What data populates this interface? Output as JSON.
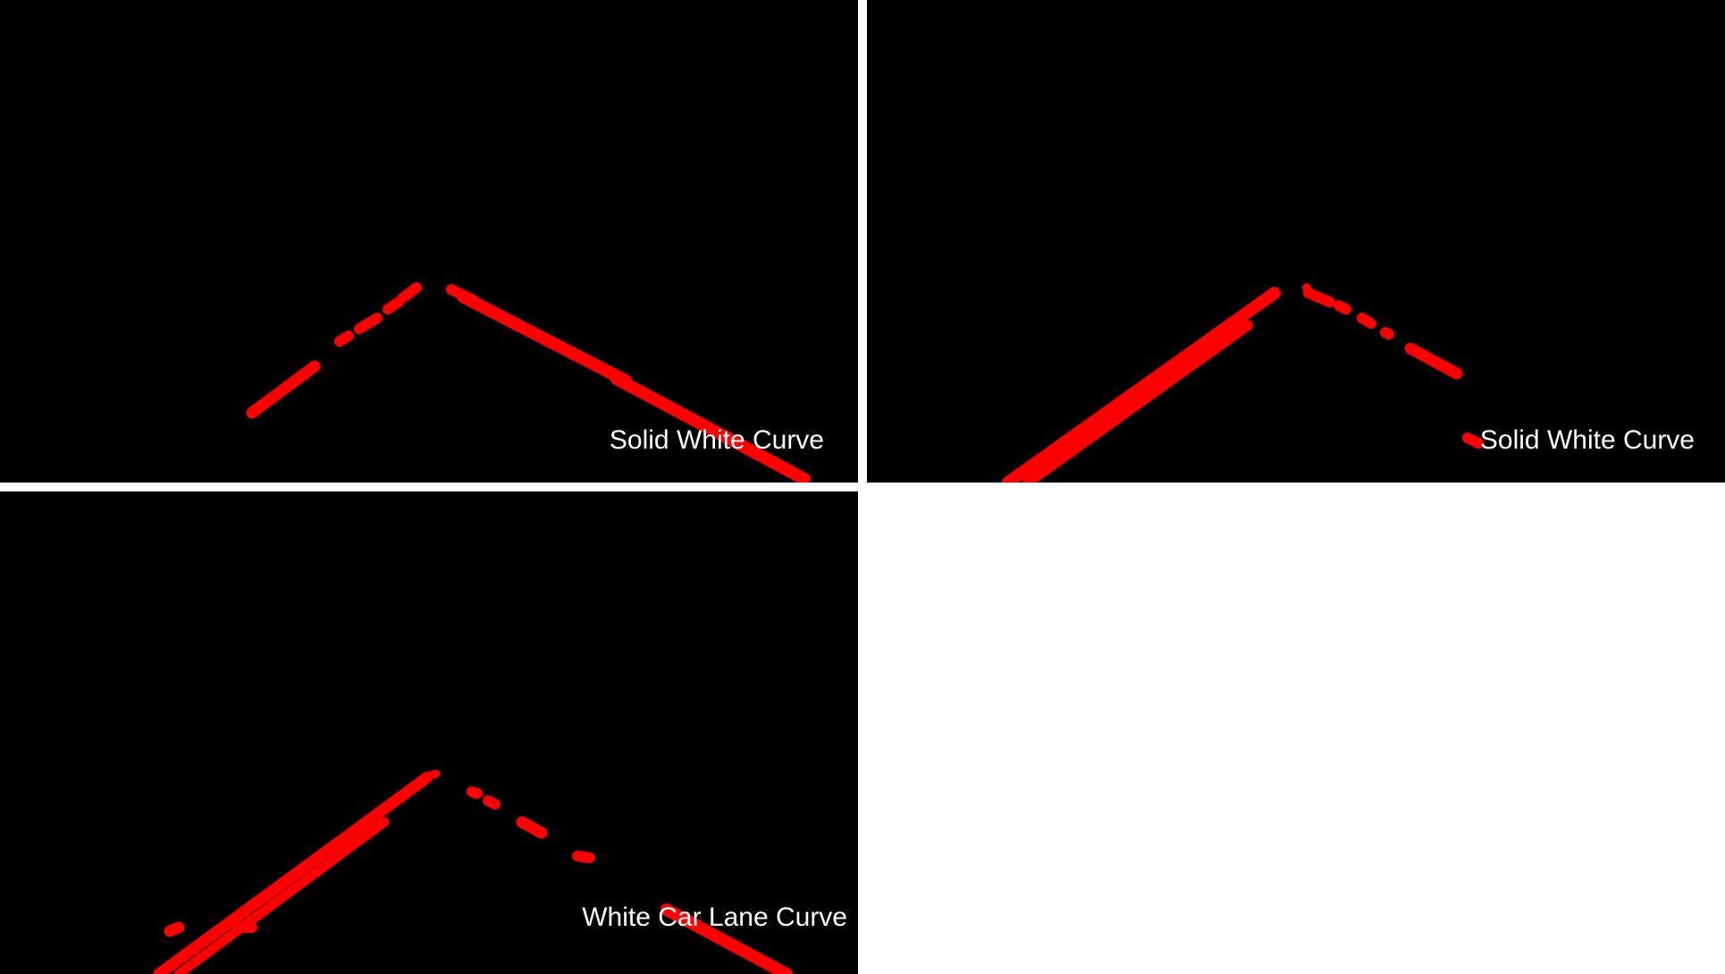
{
  "colors": {
    "background": "#000000",
    "lane_marking": "#ff0000",
    "caption_text": "#ffffff",
    "separator": "#ffffff"
  },
  "panels": [
    {
      "caption": "Solid White Curve"
    },
    {
      "caption": "Solid White Curve"
    },
    {
      "caption": "White Car Lane Curve"
    }
  ]
}
